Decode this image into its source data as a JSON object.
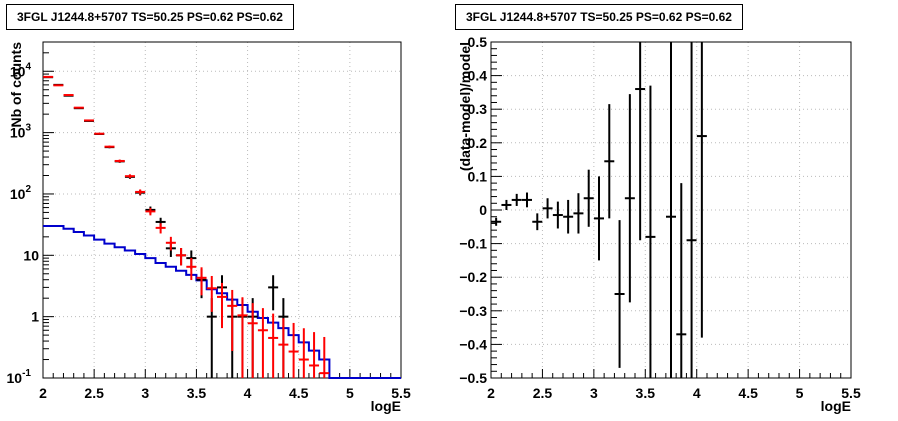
{
  "chart_data": [
    {
      "type": "line",
      "title": "3FGL J1244.8+5707 TS=50.25 PS=0.62 PS=0.62",
      "xlabel": "logE",
      "ylabel": "Nb of counts",
      "xlim": [
        2,
        5.5
      ],
      "ylim": [
        0.1,
        30000
      ],
      "log_y": true,
      "grid": true,
      "x_ticks": [
        "2",
        "2.5",
        "3",
        "3.5",
        "4",
        "4.5",
        "5",
        "5.5"
      ],
      "y_ticks": [
        {
          "value": 0.1,
          "base": "10",
          "exp": "-1"
        },
        {
          "value": 1,
          "base": "1",
          "exp": ""
        },
        {
          "value": 10,
          "base": "10",
          "exp": ""
        },
        {
          "value": 100,
          "base": "10",
          "exp": "2"
        },
        {
          "value": 1000,
          "base": "10",
          "exp": "3"
        },
        {
          "value": 10000,
          "base": "10",
          "exp": "4"
        }
      ],
      "series": [
        {
          "color": "#000000",
          "style": "points",
          "points": [
            {
              "x": 2.05,
              "y": 8000
            },
            {
              "x": 2.15,
              "y": 6000
            },
            {
              "x": 2.25,
              "y": 4000
            },
            {
              "x": 2.35,
              "y": 2500
            },
            {
              "x": 2.45,
              "y": 1550
            },
            {
              "x": 2.55,
              "y": 950
            },
            {
              "x": 2.65,
              "y": 580
            },
            {
              "x": 2.75,
              "y": 340
            },
            {
              "x": 2.85,
              "y": 190
            },
            {
              "x": 2.95,
              "y": 105
            },
            {
              "x": 3.05,
              "y": 55
            },
            {
              "x": 3.15,
              "y": 35
            },
            {
              "x": 3.25,
              "y": 13
            },
            {
              "x": 3.35,
              "y": 10
            },
            {
              "x": 3.45,
              "y": 9
            },
            {
              "x": 3.55,
              "y": 4
            },
            {
              "x": 3.65,
              "y": 1
            },
            {
              "x": 3.75,
              "y": 3
            },
            {
              "x": 3.85,
              "y": 1
            },
            {
              "x": 3.95,
              "y": 1
            },
            {
              "x": 4.05,
              "y": 1
            },
            {
              "x": 4.25,
              "y": 3
            },
            {
              "x": 4.35,
              "y": 1
            }
          ]
        },
        {
          "color": "#ff0000",
          "style": "points",
          "points": [
            {
              "x": 2.05,
              "y": 8100
            },
            {
              "x": 2.15,
              "y": 5900
            },
            {
              "x": 2.25,
              "y": 4100
            },
            {
              "x": 2.35,
              "y": 2550
            },
            {
              "x": 2.45,
              "y": 1580
            },
            {
              "x": 2.55,
              "y": 960
            },
            {
              "x": 2.65,
              "y": 590
            },
            {
              "x": 2.75,
              "y": 345
            },
            {
              "x": 2.85,
              "y": 195
            },
            {
              "x": 2.95,
              "y": 108
            },
            {
              "x": 3.05,
              "y": 52
            },
            {
              "x": 3.15,
              "y": 28
            },
            {
              "x": 3.25,
              "y": 16
            },
            {
              "x": 3.35,
              "y": 10
            },
            {
              "x": 3.45,
              "y": 6.5
            },
            {
              "x": 3.55,
              "y": 4.3
            },
            {
              "x": 3.65,
              "y": 2.9
            },
            {
              "x": 3.75,
              "y": 2.1
            },
            {
              "x": 3.85,
              "y": 1.5
            },
            {
              "x": 3.95,
              "y": 1.05
            },
            {
              "x": 4.05,
              "y": 0.78
            },
            {
              "x": 4.15,
              "y": 0.6
            },
            {
              "x": 4.25,
              "y": 0.45
            },
            {
              "x": 4.35,
              "y": 0.35
            },
            {
              "x": 4.45,
              "y": 0.27
            },
            {
              "x": 4.55,
              "y": 0.2
            },
            {
              "x": 4.65,
              "y": 0.16
            },
            {
              "x": 4.75,
              "y": 0.12
            }
          ]
        },
        {
          "color": "#0000cc",
          "style": "step",
          "edges": [
            2.0,
            2.1,
            2.2,
            2.3,
            2.4,
            2.5,
            2.6,
            2.7,
            2.8,
            2.9,
            3.0,
            3.1,
            3.2,
            3.3,
            3.4,
            3.5,
            3.6,
            3.7,
            3.8,
            3.9,
            4.0,
            4.1,
            4.2,
            4.3,
            4.4,
            4.5,
            4.6,
            4.7,
            4.8,
            4.9,
            5.0,
            5.1,
            5.2,
            5.3,
            5.4,
            5.5
          ],
          "values": [
            30,
            30,
            27,
            24,
            21,
            18,
            15.5,
            13.5,
            12,
            10.5,
            9,
            7.5,
            6.5,
            5.6,
            4.8,
            3.9,
            2.8,
            2.4,
            1.9,
            1.55,
            1.2,
            0.95,
            0.8,
            0.65,
            0.5,
            0.38,
            0.28,
            0.2,
            0.1,
            0.1,
            0.1,
            0.1,
            0.1,
            0.1,
            0.1
          ]
        }
      ]
    },
    {
      "type": "scatter",
      "title": "3FGL J1244.8+5707 TS=50.25 PS=0.62 PS=0.62",
      "xlabel": "logE",
      "ylabel": "(data-model)/model",
      "xlim": [
        2,
        5.5
      ],
      "ylim": [
        -0.5,
        0.5
      ],
      "grid": true,
      "x_ticks": [
        "2",
        "2.5",
        "3",
        "3.5",
        "4",
        "4.5",
        "5",
        "5.5"
      ],
      "y_ticks": [
        "-0.5",
        "-0.4",
        "-0.3",
        "-0.2",
        "-0.1",
        "0",
        "0.1",
        "0.2",
        "0.3",
        "0.4",
        "0.5"
      ],
      "series": [
        {
          "color": "#000000",
          "points": [
            {
              "x": 2.05,
              "y": -0.035,
              "err": 0.012
            },
            {
              "x": 2.15,
              "y": 0.015,
              "err": 0.015
            },
            {
              "x": 2.25,
              "y": 0.03,
              "err": 0.018
            },
            {
              "x": 2.35,
              "y": 0.03,
              "err": 0.022
            },
            {
              "x": 2.45,
              "y": -0.035,
              "err": 0.025
            },
            {
              "x": 2.55,
              "y": 0.005,
              "err": 0.03
            },
            {
              "x": 2.65,
              "y": -0.015,
              "err": 0.04
            },
            {
              "x": 2.75,
              "y": -0.02,
              "err": 0.05
            },
            {
              "x": 2.85,
              "y": -0.01,
              "err": 0.06
            },
            {
              "x": 2.95,
              "y": 0.035,
              "err": 0.085
            },
            {
              "x": 3.05,
              "y": -0.025,
              "err": 0.125
            },
            {
              "x": 3.15,
              "y": 0.145,
              "err": 0.17
            },
            {
              "x": 3.25,
              "y": -0.25,
              "err": 0.22
            },
            {
              "x": 3.35,
              "y": 0.035,
              "err": 0.31
            },
            {
              "x": 3.45,
              "y": 0.36,
              "err": 0.45
            },
            {
              "x": 3.55,
              "y": -0.08,
              "err": 0.45
            },
            {
              "x": 3.75,
              "y": -0.02,
              "err": 0.6
            },
            {
              "x": 3.85,
              "y": -0.37,
              "err": 0.45
            },
            {
              "x": 3.95,
              "y": -0.09,
              "err": 0.6
            },
            {
              "x": 4.05,
              "y": 0.22,
              "err": 0.6
            }
          ]
        }
      ]
    }
  ]
}
